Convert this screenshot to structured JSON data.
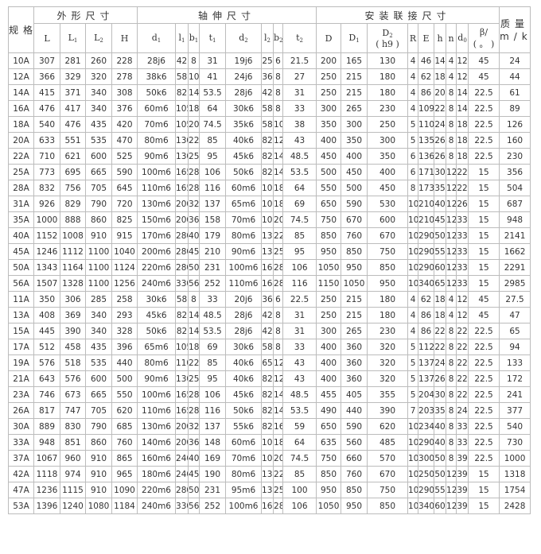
{
  "header": {
    "spec": "规格",
    "groups": [
      "外形尺寸",
      "轴伸尺寸",
      "安装联接尺寸"
    ],
    "mass": "质量",
    "mass_unit": "m/kg",
    "columns": [
      {
        "label": "L",
        "sub": ""
      },
      {
        "label": "L",
        "sub": "1"
      },
      {
        "label": "L",
        "sub": "2"
      },
      {
        "label": "H",
        "sub": ""
      },
      {
        "label": "d",
        "sub": "1"
      },
      {
        "label": "l",
        "sub": "1"
      },
      {
        "label": "b",
        "sub": "1"
      },
      {
        "label": "t",
        "sub": "1"
      },
      {
        "label": "d",
        "sub": "2"
      },
      {
        "label": "l",
        "sub": "2"
      },
      {
        "label": "b",
        "sub": "2"
      },
      {
        "label": "t",
        "sub": "2"
      },
      {
        "label": "D",
        "sub": ""
      },
      {
        "label": "D",
        "sub": "1"
      },
      {
        "label": "D",
        "sub": "2",
        "line2": "( h9 )"
      },
      {
        "label": "R",
        "sub": ""
      },
      {
        "label": "E",
        "sub": ""
      },
      {
        "label": "h",
        "sub": ""
      },
      {
        "label": "n",
        "sub": ""
      },
      {
        "label": "d",
        "sub": "0"
      },
      {
        "label": "β/",
        "sub": "",
        "line2": "( 。 )"
      }
    ]
  },
  "rows": [
    [
      "10A",
      "307",
      "281",
      "260",
      "228",
      "28j6",
      "42",
      "8",
      "31",
      "19j6",
      "25",
      "6",
      "21.5",
      "200",
      "165",
      "130",
      "4",
      "46",
      "14",
      "4",
      "12",
      "45",
      "24"
    ],
    [
      "12A",
      "366",
      "329",
      "320",
      "278",
      "38k6",
      "58",
      "10",
      "41",
      "24j6",
      "36",
      "8",
      "27",
      "250",
      "215",
      "180",
      "4",
      "62",
      "18",
      "4",
      "12",
      "45",
      "44"
    ],
    [
      "14A",
      "415",
      "371",
      "340",
      "308",
      "50k6",
      "82",
      "14",
      "53.5",
      "28j6",
      "42",
      "8",
      "31",
      "250",
      "215",
      "180",
      "4",
      "86",
      "20",
      "8",
      "14",
      "22.5",
      "61"
    ],
    [
      "16A",
      "476",
      "417",
      "340",
      "376",
      "60m6",
      "105",
      "18",
      "64",
      "30k6",
      "58",
      "8",
      "33",
      "300",
      "265",
      "230",
      "4",
      "109",
      "22",
      "8",
      "14",
      "22.5",
      "89"
    ],
    [
      "18A",
      "540",
      "476",
      "435",
      "420",
      "70m6",
      "105",
      "20",
      "74.5",
      "35k6",
      "58",
      "10",
      "38",
      "350",
      "300",
      "250",
      "5",
      "110",
      "24",
      "8",
      "18",
      "22.5",
      "126"
    ],
    [
      "20A",
      "633",
      "551",
      "535",
      "470",
      "80m6",
      "130",
      "22",
      "85",
      "40k6",
      "82",
      "12",
      "43",
      "400",
      "350",
      "300",
      "5",
      "135",
      "26",
      "8",
      "18",
      "22.5",
      "160"
    ],
    [
      "22A",
      "710",
      "621",
      "600",
      "525",
      "90m6",
      "130",
      "25",
      "95",
      "45k6",
      "82",
      "14",
      "48.5",
      "450",
      "400",
      "350",
      "6",
      "136",
      "26",
      "8",
      "18",
      "22.5",
      "230"
    ],
    [
      "25A",
      "773",
      "695",
      "665",
      "590",
      "100m6",
      "165",
      "28",
      "106",
      "50k6",
      "82",
      "14",
      "53.5",
      "500",
      "450",
      "400",
      "6",
      "171",
      "30",
      "12",
      "22",
      "15",
      "356"
    ],
    [
      "28A",
      "832",
      "756",
      "705",
      "645",
      "110m6",
      "165",
      "28",
      "116",
      "60m6",
      "105",
      "18",
      "64",
      "550",
      "500",
      "450",
      "8",
      "173",
      "35",
      "12",
      "22",
      "15",
      "504"
    ],
    [
      "31A",
      "926",
      "829",
      "790",
      "720",
      "130m6",
      "200",
      "32",
      "137",
      "65m6",
      "105",
      "18",
      "69",
      "650",
      "590",
      "530",
      "10",
      "210",
      "40",
      "12",
      "26",
      "15",
      "687"
    ],
    [
      "35A",
      "1000",
      "888",
      "860",
      "825",
      "150m6",
      "200",
      "36",
      "158",
      "70m6",
      "105",
      "20",
      "74.5",
      "750",
      "670",
      "600",
      "10",
      "210",
      "45",
      "12",
      "33",
      "15",
      "948"
    ],
    [
      "40A",
      "1152",
      "1008",
      "910",
      "915",
      "170m6",
      "280",
      "40",
      "179",
      "80m6",
      "130",
      "22",
      "85",
      "850",
      "760",
      "670",
      "10",
      "290",
      "50",
      "12",
      "33",
      "15",
      "2141"
    ],
    [
      "45A",
      "1246",
      "1112",
      "1100",
      "1040",
      "200m6",
      "280",
      "45",
      "210",
      "90m6",
      "130",
      "25",
      "95",
      "950",
      "850",
      "750",
      "10",
      "290",
      "55",
      "12",
      "33",
      "15",
      "1662"
    ],
    [
      "50A",
      "1343",
      "1164",
      "1100",
      "1124",
      "220m6",
      "280",
      "50",
      "231",
      "100m6",
      "165",
      "28",
      "106",
      "1050",
      "950",
      "850",
      "10",
      "290",
      "60",
      "12",
      "33",
      "15",
      "2291"
    ],
    [
      "56A",
      "1507",
      "1328",
      "1100",
      "1256",
      "240m6",
      "330",
      "56",
      "252",
      "110m6",
      "165",
      "28",
      "116",
      "1150",
      "1050",
      "950",
      "10",
      "340",
      "65",
      "12",
      "33",
      "15",
      "2985"
    ],
    [
      "11A",
      "350",
      "306",
      "285",
      "258",
      "30k6",
      "58",
      "8",
      "33",
      "20j6",
      "36",
      "6",
      "22.5",
      "250",
      "215",
      "180",
      "4",
      "62",
      "18",
      "4",
      "12",
      "45",
      "27.5"
    ],
    [
      "13A",
      "408",
      "369",
      "340",
      "293",
      "45k6",
      "82",
      "14",
      "48.5",
      "28j6",
      "42",
      "8",
      "31",
      "250",
      "215",
      "180",
      "4",
      "86",
      "18",
      "4",
      "12",
      "45",
      "47"
    ],
    [
      "15A",
      "445",
      "390",
      "340",
      "328",
      "50k6",
      "82",
      "14",
      "53.5",
      "28j6",
      "42",
      "8",
      "31",
      "300",
      "265",
      "230",
      "4",
      "86",
      "22",
      "8",
      "22",
      "22.5",
      "65"
    ],
    [
      "17A",
      "512",
      "458",
      "435",
      "396",
      "65m6",
      "105",
      "18",
      "69",
      "30k6",
      "58",
      "8",
      "33",
      "400",
      "360",
      "320",
      "5",
      "112",
      "22",
      "8",
      "22",
      "22.5",
      "94"
    ],
    [
      "19A",
      "576",
      "518",
      "535",
      "440",
      "80m6",
      "110",
      "22",
      "85",
      "40k6",
      "65",
      "12",
      "43",
      "400",
      "360",
      "320",
      "5",
      "137",
      "24",
      "8",
      "22",
      "22.5",
      "133"
    ],
    [
      "21A",
      "643",
      "576",
      "600",
      "500",
      "90m6",
      "130",
      "25",
      "95",
      "40k6",
      "82",
      "12",
      "43",
      "400",
      "360",
      "320",
      "5",
      "137",
      "26",
      "8",
      "22",
      "22.5",
      "172"
    ],
    [
      "23A",
      "746",
      "673",
      "665",
      "550",
      "100m6",
      "165",
      "28",
      "106",
      "45k6",
      "82",
      "14",
      "48.5",
      "455",
      "405",
      "355",
      "5",
      "204",
      "30",
      "8",
      "22",
      "22.5",
      "241"
    ],
    [
      "26A",
      "817",
      "747",
      "705",
      "620",
      "110m6",
      "165",
      "28",
      "116",
      "50k6",
      "82",
      "14",
      "53.5",
      "490",
      "440",
      "390",
      "7",
      "203",
      "35",
      "8",
      "24",
      "22.5",
      "377"
    ],
    [
      "30A",
      "889",
      "830",
      "790",
      "685",
      "130m6",
      "200",
      "32",
      "137",
      "55k6",
      "82",
      "16",
      "59",
      "650",
      "590",
      "620",
      "10",
      "234",
      "40",
      "8",
      "33",
      "22.5",
      "540"
    ],
    [
      "33A",
      "948",
      "851",
      "860",
      "760",
      "140m6",
      "200",
      "36",
      "148",
      "60m6",
      "105",
      "18",
      "64",
      "635",
      "560",
      "485",
      "10",
      "290",
      "40",
      "8",
      "33",
      "22.5",
      "730"
    ],
    [
      "37A",
      "1067",
      "960",
      "910",
      "865",
      "160m6",
      "240",
      "40",
      "169",
      "70m6",
      "105",
      "20",
      "74.5",
      "750",
      "660",
      "570",
      "10",
      "300",
      "50",
      "8",
      "39",
      "22.5",
      "1000"
    ],
    [
      "42A",
      "1118",
      "974",
      "910",
      "965",
      "180m6",
      "240",
      "45",
      "190",
      "80m6",
      "130",
      "22",
      "85",
      "850",
      "760",
      "670",
      "10",
      "250",
      "50",
      "12",
      "39",
      "15",
      "1318"
    ],
    [
      "47A",
      "1236",
      "1115",
      "910",
      "1090",
      "220m6",
      "280",
      "50",
      "231",
      "95m6",
      "130",
      "25",
      "100",
      "950",
      "850",
      "750",
      "10",
      "290",
      "55",
      "12",
      "39",
      "15",
      "1754"
    ],
    [
      "53A",
      "1396",
      "1240",
      "1080",
      "1184",
      "240m6",
      "330",
      "56",
      "252",
      "100m6",
      "165",
      "28",
      "106",
      "1050",
      "950",
      "850",
      "10",
      "340",
      "60",
      "12",
      "39",
      "15",
      "2428"
    ]
  ]
}
